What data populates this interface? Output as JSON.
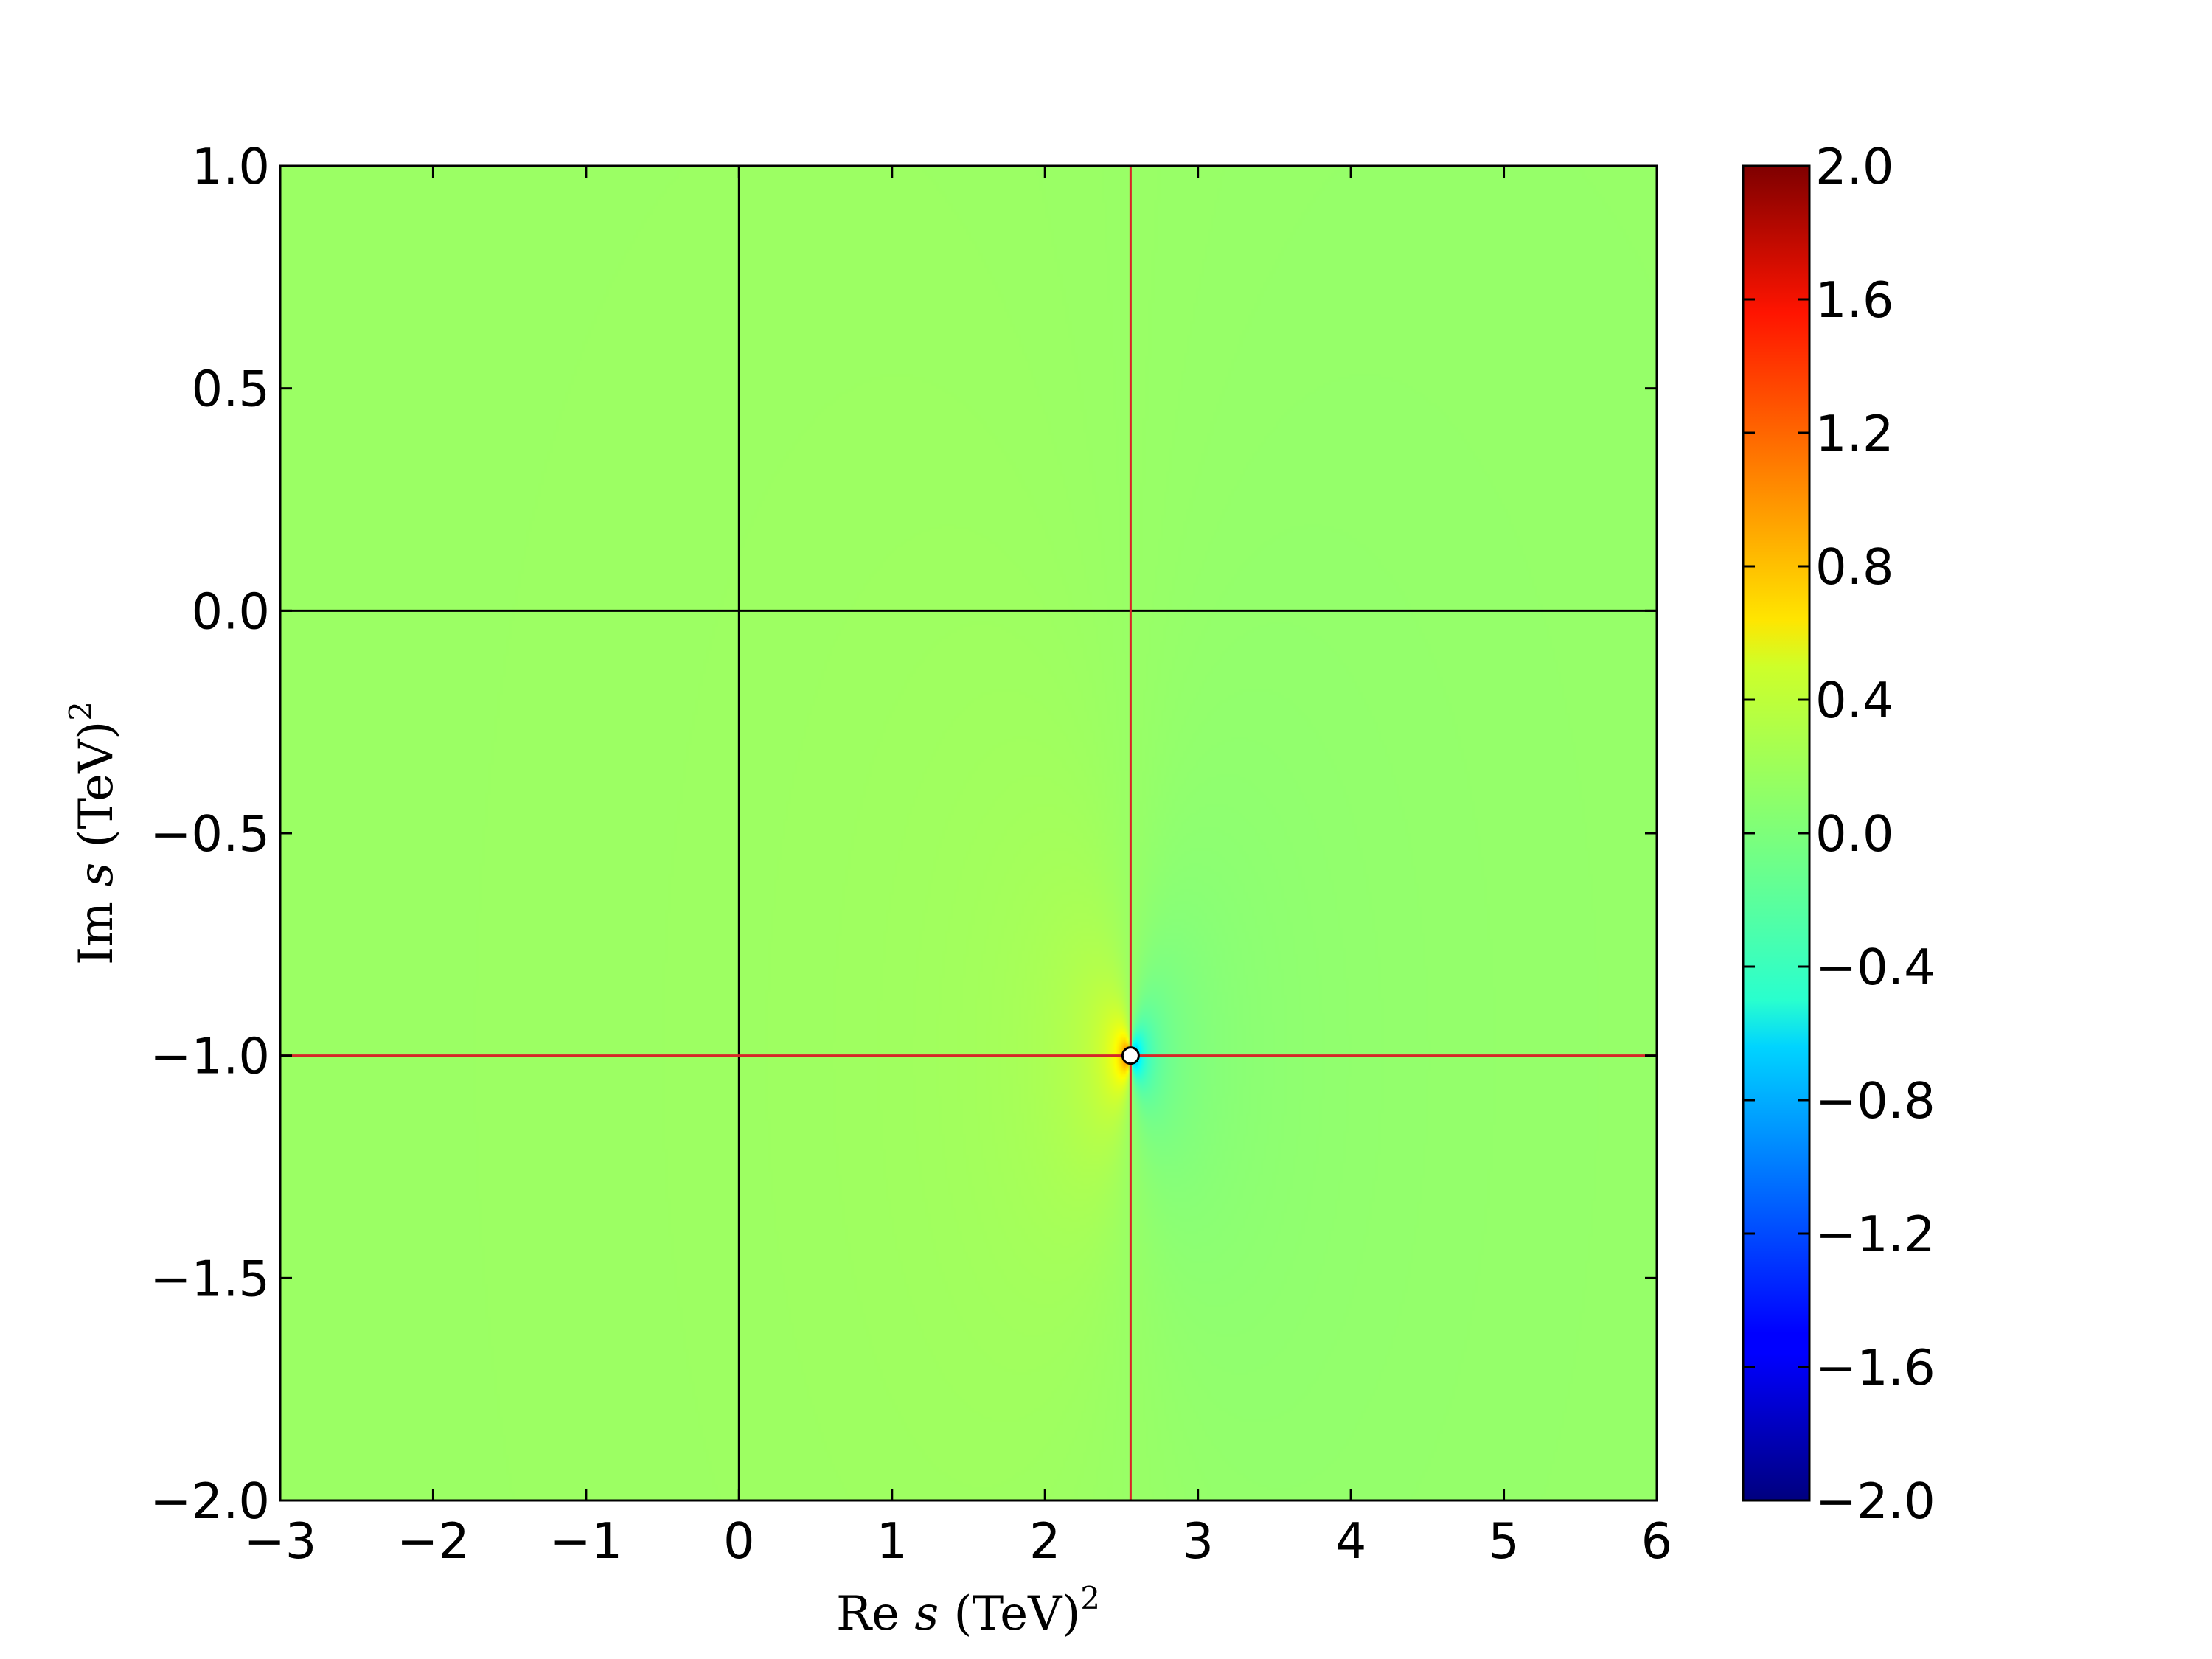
{
  "chart_data": {
    "type": "heatmap",
    "title": "",
    "xlabel": {
      "prefix": "Re ",
      "var": "s",
      "suffix": " (TeV)",
      "sup": "2"
    },
    "ylabel": {
      "prefix": "Im ",
      "var": "s",
      "suffix": " (TeV)",
      "sup": "2"
    },
    "xlim": [
      -3,
      6
    ],
    "ylim": [
      -2,
      1
    ],
    "x_ticks": [
      -3,
      -2,
      -1,
      0,
      1,
      2,
      3,
      4,
      5,
      6
    ],
    "x_tick_labels": [
      "−3",
      "−2",
      "−1",
      "0",
      "1",
      "2",
      "3",
      "4",
      "5",
      "6"
    ],
    "y_ticks": [
      1.0,
      0.5,
      0.0,
      -0.5,
      -1.0,
      -1.5,
      -2.0
    ],
    "y_tick_labels": [
      "1.0",
      "0.5",
      "0.0",
      "−0.5",
      "−1.0",
      "−1.5",
      "−2.0"
    ],
    "colorbar": {
      "colormap": "jet",
      "range": [
        -2.0,
        2.0
      ],
      "ticks": [
        2.0,
        1.6,
        1.2,
        0.8,
        0.4,
        0.0,
        -0.4,
        -0.8,
        -1.2,
        -1.6,
        -2.0
      ],
      "tick_labels": [
        "2.0",
        "1.6",
        "1.2",
        "0.8",
        "0.4",
        "0.0",
        "−0.4",
        "−0.8",
        "−1.2",
        "−1.6",
        "−2.0"
      ]
    },
    "field": {
      "description_value_at_background": 0.1,
      "pole": {
        "x": 2.56,
        "y": -1.0
      }
    },
    "reference_lines": {
      "black": {
        "x": 0,
        "y": 0
      },
      "red": {
        "x": 2.56,
        "y": -1.0
      }
    },
    "marker": {
      "x": 2.56,
      "y": -1.0,
      "fill": "#ffffff",
      "edge": "#000000"
    },
    "colors": {
      "black_line": "#000000",
      "red_line": "#d62728"
    }
  }
}
